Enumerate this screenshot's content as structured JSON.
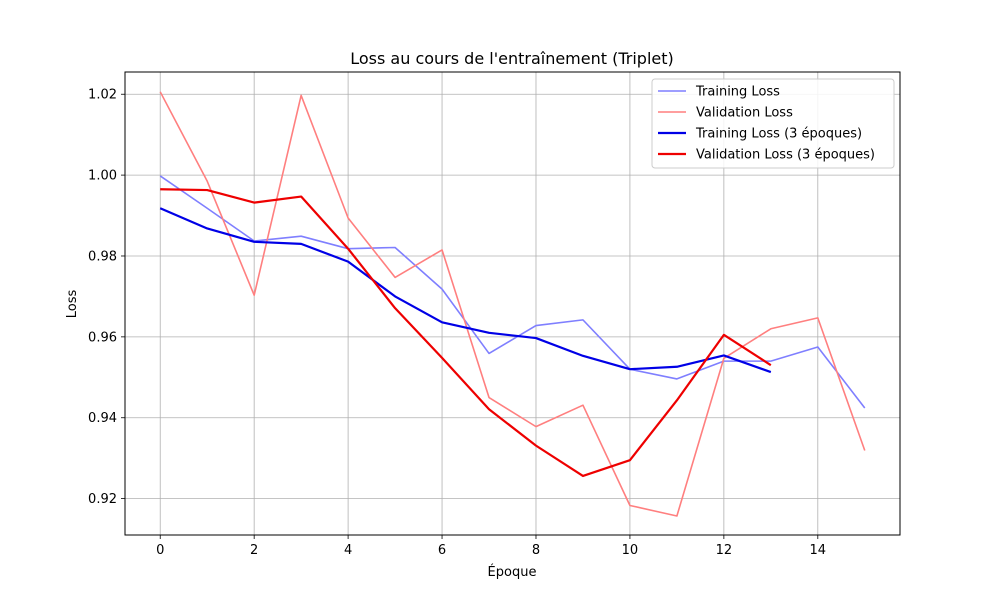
{
  "chart_data": {
    "type": "line",
    "title": "Loss au cours de l'entraînement (Triplet)",
    "xlabel": "Époque",
    "ylabel": "Loss",
    "xlim": [
      -0.75,
      15.75
    ],
    "ylim": [
      0.911,
      1.0255
    ],
    "xticks": [
      0,
      2,
      4,
      6,
      8,
      10,
      12,
      14
    ],
    "yticks": [
      0.92,
      0.94,
      0.96,
      0.98,
      1.0,
      1.02
    ],
    "ytick_labels": [
      "0.92",
      "0.94",
      "0.96",
      "0.98",
      "1.00",
      "1.02"
    ],
    "grid": true,
    "legend_position": "top-right",
    "series": [
      {
        "name": "Training Loss",
        "color": "#7f7fff",
        "x": [
          0,
          1,
          2,
          3,
          4,
          5,
          6,
          7,
          8,
          9,
          10,
          11,
          12,
          13,
          14,
          15
        ],
        "values": [
          0.9998,
          0.9918,
          0.9837,
          0.9849,
          0.9818,
          0.9821,
          0.9718,
          0.9559,
          0.9628,
          0.9642,
          0.952,
          0.9496,
          0.954,
          0.954,
          0.9575,
          0.9424
        ]
      },
      {
        "name": "Validation Loss",
        "color": "#ff7f7f",
        "x": [
          0,
          1,
          2,
          3,
          4,
          5,
          6,
          7,
          8,
          9,
          10,
          11,
          12,
          13,
          14,
          15
        ],
        "values": [
          1.0206,
          0.9985,
          0.9703,
          1.0197,
          0.9894,
          0.9747,
          0.9815,
          0.945,
          0.9378,
          0.9431,
          0.9183,
          0.9157,
          0.9547,
          0.962,
          0.9647,
          0.9319
        ]
      },
      {
        "name": "Training Loss (3 époques)",
        "color": "#0000e6",
        "x": [
          0,
          1,
          2,
          3,
          4,
          5,
          6,
          7,
          8,
          9,
          10,
          11,
          12,
          13
        ],
        "values": [
          0.9918,
          0.9868,
          0.9835,
          0.983,
          0.9786,
          0.97,
          0.9636,
          0.961,
          0.9597,
          0.9553,
          0.952,
          0.9526,
          0.9554,
          0.9513
        ]
      },
      {
        "name": "Validation Loss (3 époques)",
        "color": "#ee0000",
        "x": [
          0,
          1,
          2,
          3,
          4,
          5,
          6,
          7,
          8,
          9,
          10,
          11,
          12,
          13
        ],
        "values": [
          0.9965,
          0.9963,
          0.9932,
          0.9947,
          0.9818,
          0.9671,
          0.9548,
          0.9421,
          0.9331,
          0.9256,
          0.9295,
          0.9443,
          0.9605,
          0.953
        ]
      }
    ]
  }
}
